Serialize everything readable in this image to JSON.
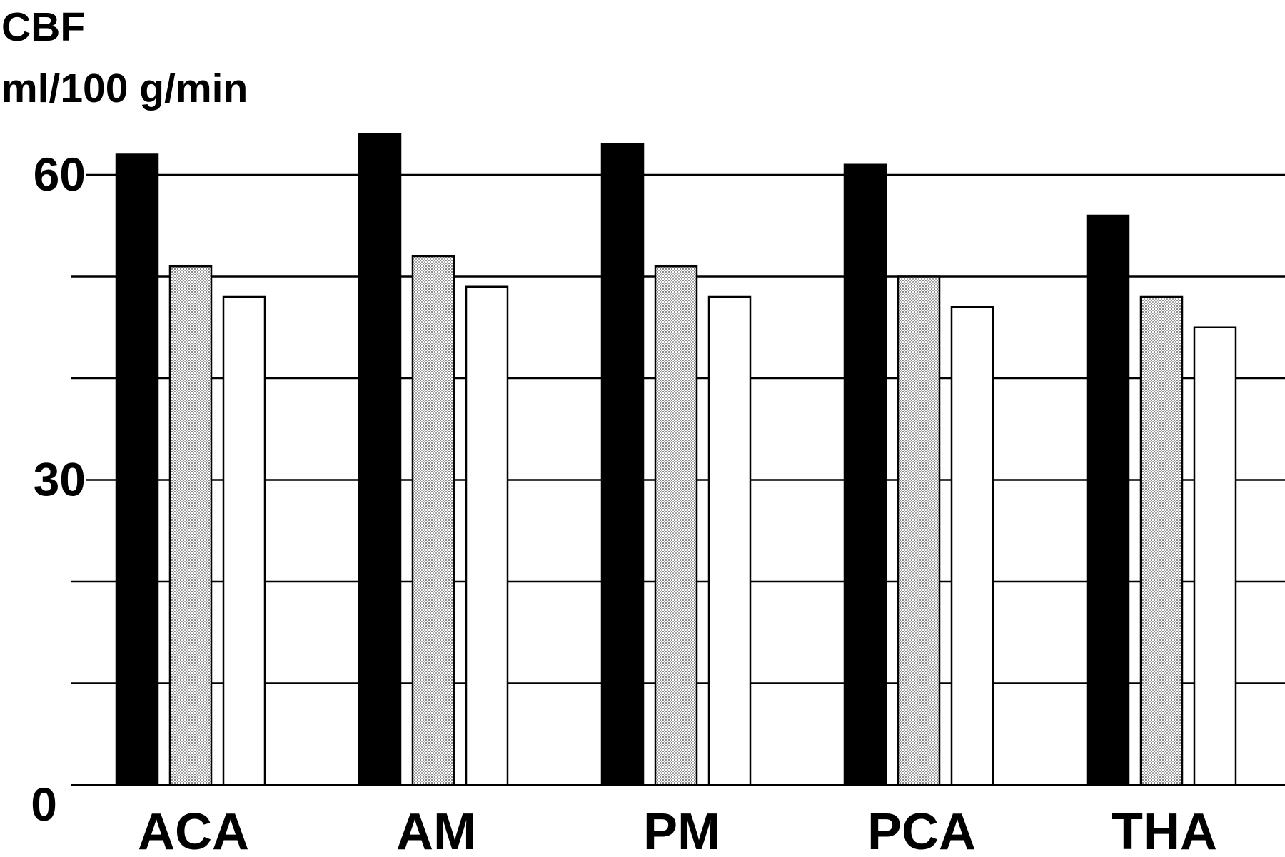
{
  "chart_data": {
    "type": "bar",
    "ylabel_line1": "CBF",
    "ylabel_line2": "ml/100 g/min",
    "categories": [
      "ACA",
      "AM",
      "PM",
      "PCA",
      "THA"
    ],
    "series": [
      {
        "values": [
          62,
          64,
          63,
          61,
          56
        ],
        "fill": "#000000"
      },
      {
        "values": [
          51,
          52,
          51,
          50,
          48
        ],
        "fill": "dotted-gray"
      },
      {
        "values": [
          48,
          49,
          48,
          47,
          45
        ],
        "fill": "#ffffff"
      }
    ],
    "yticks": [
      0,
      30,
      60
    ],
    "ylim": [
      0,
      60
    ],
    "grid_step": 10,
    "grid": true,
    "legend": "none",
    "colors": {
      "dark": "#000000",
      "dotted": "#c8c8c8",
      "light": "#ffffff"
    }
  }
}
